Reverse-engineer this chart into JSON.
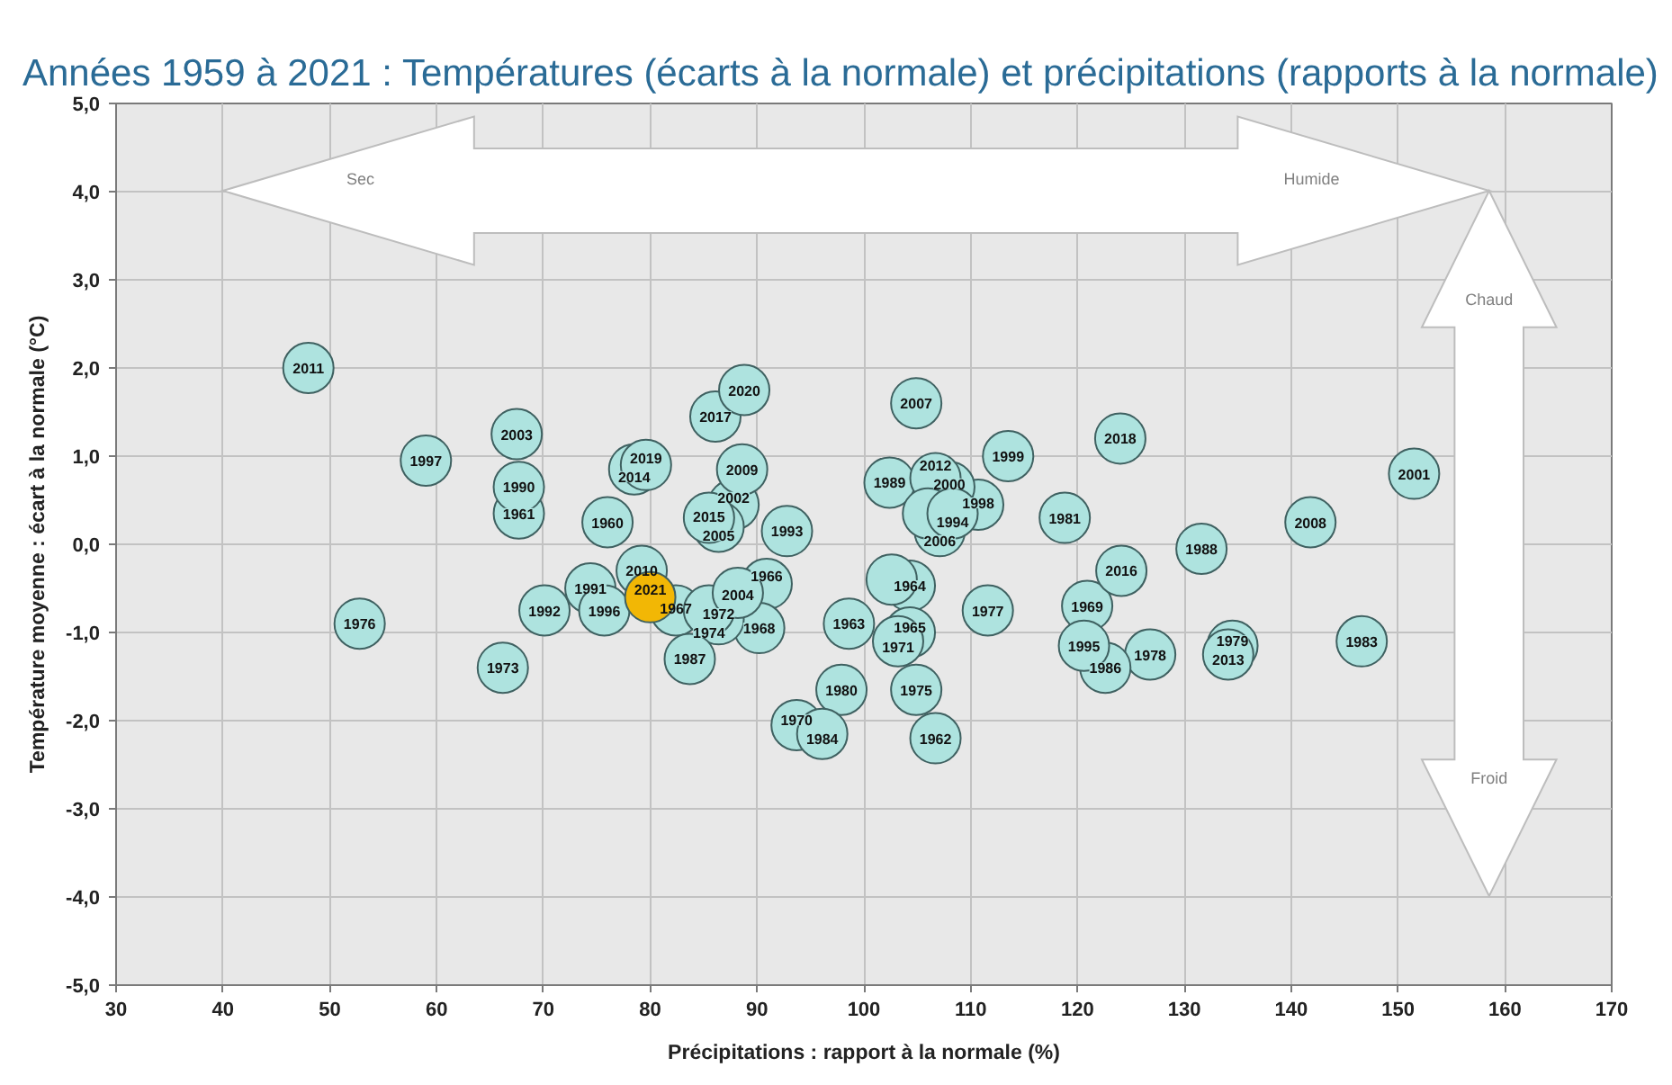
{
  "chart_data": {
    "type": "scatter",
    "title": "Années 1959 à 2021 : Températures (écarts à la normale) et précipitations (rapports à la normale)",
    "xlabel": "Précipitations : rapport à la normale (%)",
    "ylabel": "Température moyenne : écart à la normale (°C)",
    "annotations": [
      "Sec",
      "Humide",
      "Chaud",
      "Froid",
      {
        "text": "1960",
        "x": 76.0,
        "y": 0.25
      },
      {
        "text": "1961",
        "x": 67.7,
        "y": 0.35
      },
      {
        "text": "1962",
        "x": 106.7,
        "y": -2.2
      },
      {
        "text": "1963",
        "x": 98.6,
        "y": -0.9
      },
      {
        "text": "1964",
        "x": 104.3,
        "y": -0.47
      },
      {
        "text": "1965",
        "x": 104.3,
        "y": -1.0
      },
      {
        "text": "1966",
        "x": 90.9,
        "y": -0.45
      },
      {
        "text": "1967",
        "x": 82.4,
        "y": -0.75
      },
      {
        "text": "1968",
        "x": 90.2,
        "y": -0.95
      },
      {
        "text": "1969",
        "x": 120.9,
        "y": -0.7
      },
      {
        "text": "1970",
        "x": 93.7,
        "y": -2.05
      },
      {
        "text": "1971",
        "x": 103.2,
        "y": -1.1
      },
      {
        "text": "1972",
        "x": 86.4,
        "y": -0.85
      },
      {
        "text": "1973",
        "x": 66.2,
        "y": -1.4
      },
      {
        "text": "1974",
        "x": 85.5,
        "y": -0.75
      },
      {
        "text": "1975",
        "x": 104.9,
        "y": -1.65
      },
      {
        "text": "1976",
        "x": 52.8,
        "y": -0.9
      },
      {
        "text": "1977",
        "x": 111.6,
        "y": -0.75
      },
      {
        "text": "1978",
        "x": 126.8,
        "y": -1.25
      },
      {
        "text": "1979",
        "x": 134.5,
        "y": -1.15
      },
      {
        "text": "1980",
        "x": 97.9,
        "y": -1.65
      },
      {
        "text": "1981",
        "x": 118.8,
        "y": 0.3
      },
      {
        "text": "1983",
        "x": 146.6,
        "y": -1.1
      },
      {
        "text": "1984",
        "x": 96.1,
        "y": -2.15
      },
      {
        "text": "1986",
        "x": 122.6,
        "y": -1.4
      },
      {
        "text": "1987",
        "x": 83.7,
        "y": -1.3
      },
      {
        "text": "1988",
        "x": 131.6,
        "y": -0.05
      },
      {
        "text": "1989",
        "x": 102.4,
        "y": 0.7
      },
      {
        "text": "1990",
        "x": 67.7,
        "y": 0.65
      },
      {
        "text": "1991",
        "x": 74.4,
        "y": -0.5
      },
      {
        "text": "1992",
        "x": 70.1,
        "y": -0.75
      },
      {
        "text": "1993",
        "x": 92.8,
        "y": 0.15
      },
      {
        "text": "1995",
        "x": 120.6,
        "y": -1.15
      },
      {
        "text": "1996",
        "x": 75.7,
        "y": -0.75
      },
      {
        "text": "1997",
        "x": 59.0,
        "y": 0.95
      },
      {
        "text": "1998",
        "x": 110.7,
        "y": 0.45
      },
      {
        "text": "1999",
        "x": 113.5,
        "y": 1.0
      },
      {
        "text": "2000",
        "x": 108.0,
        "y": 0.65
      },
      {
        "text": "2001",
        "x": 151.5,
        "y": 0.8
      },
      {
        "text": "2002",
        "x": 87.8,
        "y": 0.45
      },
      {
        "text": "2003",
        "x": 67.5,
        "y": 1.25
      },
      {
        "text": "2004",
        "x": 88.2,
        "y": -0.55
      },
      {
        "text": "2005",
        "x": 86.4,
        "y": 0.2
      },
      {
        "text": "2006",
        "x": 107.1,
        "y": 0.15
      },
      {
        "text": "2007",
        "x": 104.9,
        "y": 1.6
      },
      {
        "text": "2008",
        "x": 141.8,
        "y": 0.25
      },
      {
        "text": "2009",
        "x": 88.6,
        "y": 0.85
      },
      {
        "text": "2010",
        "x": 79.2,
        "y": -0.3
      },
      {
        "text": "2011",
        "x": 48.0,
        "y": 2.0
      },
      {
        "text": "2012",
        "x": 106.7,
        "y": 0.75
      },
      {
        "text": "2013",
        "x": 134.1,
        "y": -1.25
      },
      {
        "text": "2014",
        "x": 78.5,
        "y": 0.85
      },
      {
        "text": "2015",
        "x": 85.5,
        "y": 0.3
      },
      {
        "text": "2016",
        "x": 124.1,
        "y": -0.3
      },
      {
        "text": "2017",
        "x": 86.1,
        "y": 1.45
      },
      {
        "text": "2018",
        "x": 124.0,
        "y": 1.2
      },
      {
        "text": "2019",
        "x": 79.6,
        "y": 0.9
      },
      {
        "text": "2020",
        "x": 88.8,
        "y": 1.75
      },
      {
        "text": "2021",
        "x": 80.0,
        "y": -0.6
      },
      {
        "text": "1994",
        "x": 108.3,
        "y": 0.35
      }
    ],
    "xlim": [
      30,
      170
    ],
    "xticks": [
      30,
      40,
      50,
      60,
      70,
      80,
      90,
      100,
      110,
      120,
      130,
      140,
      150,
      160,
      170
    ],
    "ylim": [
      -5,
      5
    ],
    "yticks": [
      {
        "value": -5,
        "label": "-5,0"
      },
      {
        "value": -4,
        "label": "-4,0"
      },
      {
        "value": -3,
        "label": "-3,0"
      },
      {
        "value": -2,
        "label": "-2,0"
      },
      {
        "value": -1,
        "label": "-1,0"
      },
      {
        "value": 0,
        "label": "0,0"
      },
      {
        "value": 1,
        "label": "1,0"
      },
      {
        "value": 2,
        "label": "2,0"
      },
      {
        "value": 3,
        "label": "3,0"
      },
      {
        "value": 4,
        "label": "4,0"
      },
      {
        "value": 5,
        "label": "5,0"
      }
    ],
    "grid": true,
    "marker": "circle",
    "series": [
      {
        "x": [
          76.0,
          67.7,
          106.7,
          98.6,
          104.3,
          104.3,
          90.9,
          82.4,
          90.2,
          120.9,
          93.7,
          103.2,
          86.4,
          66.2,
          85.5,
          104.9,
          52.8,
          111.6,
          126.8,
          134.5,
          97.9,
          118.8,
          146.6,
          96.1,
          122.6,
          83.7,
          131.6,
          102.4,
          67.7,
          74.4,
          70.1,
          92.8,
          120.6,
          75.7,
          59.0,
          110.7,
          113.5,
          108.0,
          151.5,
          87.8,
          67.5,
          88.2,
          86.4,
          107.1,
          104.9,
          141.8,
          88.6,
          79.2,
          48.0,
          106.7,
          134.1,
          78.5,
          85.5,
          124.1,
          86.1,
          124.0,
          79.6,
          88.8,
          80.0,
          106.0,
          102.6,
          108.3
        ],
        "values": [
          0.25,
          0.35,
          -2.2,
          -0.9,
          -0.47,
          -1.0,
          -0.45,
          -0.75,
          -0.95,
          -0.7,
          -2.05,
          -1.1,
          -0.85,
          -1.4,
          -0.75,
          -1.65,
          -0.9,
          -0.75,
          -1.25,
          -1.15,
          -1.65,
          0.3,
          -1.1,
          -2.15,
          -1.4,
          -1.3,
          -0.05,
          0.7,
          0.65,
          -0.5,
          -0.75,
          0.15,
          -1.15,
          -0.75,
          0.95,
          0.45,
          1.0,
          0.65,
          0.8,
          0.45,
          1.25,
          -0.55,
          0.2,
          0.15,
          1.6,
          0.25,
          0.85,
          -0.3,
          2.0,
          0.75,
          -1.25,
          0.85,
          0.3,
          -0.3,
          1.45,
          1.2,
          0.9,
          1.75,
          -0.6,
          0.35,
          -0.4,
          0.35
        ],
        "colors": [
          "#aee3df",
          "#aee3df",
          "#aee3df",
          "#aee3df",
          "#aee3df",
          "#aee3df",
          "#aee3df",
          "#aee3df",
          "#aee3df",
          "#aee3df",
          "#aee3df",
          "#aee3df",
          "#aee3df",
          "#aee3df",
          "#aee3df",
          "#aee3df",
          "#aee3df",
          "#aee3df",
          "#aee3df",
          "#aee3df",
          "#aee3df",
          "#aee3df",
          "#aee3df",
          "#aee3df",
          "#aee3df",
          "#aee3df",
          "#aee3df",
          "#aee3df",
          "#aee3df",
          "#aee3df",
          "#aee3df",
          "#aee3df",
          "#aee3df",
          "#aee3df",
          "#aee3df",
          "#aee3df",
          "#aee3df",
          "#aee3df",
          "#aee3df",
          "#aee3df",
          "#aee3df",
          "#aee3df",
          "#aee3df",
          "#aee3df",
          "#aee3df",
          "#aee3df",
          "#aee3df",
          "#aee3df",
          "#aee3df",
          "#aee3df",
          "#aee3df",
          "#aee3df",
          "#aee3df",
          "#aee3df",
          "#aee3df",
          "#aee3df",
          "#aee3df",
          "#aee3df",
          "#f2b705",
          "#aee3df",
          "#aee3df",
          "#aee3df"
        ]
      }
    ]
  }
}
